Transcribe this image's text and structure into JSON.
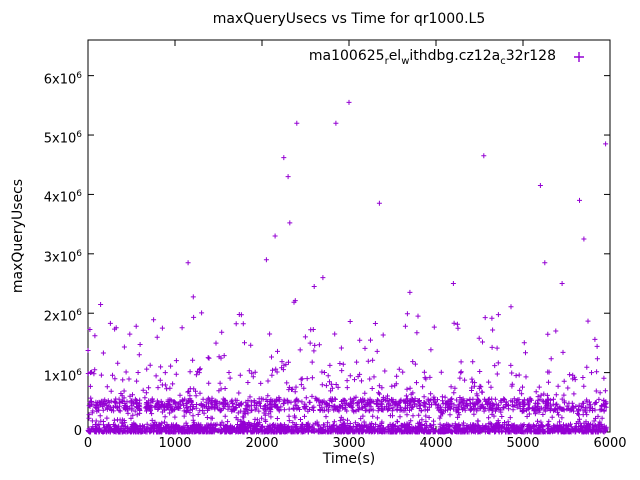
{
  "page": {
    "background": "#ffffff"
  },
  "chart_data": {
    "type": "scatter",
    "title": "maxQueryUsecs vs Time for qr1000.L5",
    "xlabel": "Time(s)",
    "ylabel": "maxQueryUsecs",
    "xlim": [
      0,
      6000
    ],
    "ylim": [
      0,
      6600000
    ],
    "grid": false,
    "border": true,
    "legend_position": "top-right-inside",
    "xticks": [
      {
        "v": 0,
        "label": "0"
      },
      {
        "v": 1000,
        "label": "1000"
      },
      {
        "v": 2000,
        "label": "2000"
      },
      {
        "v": 3000,
        "label": "3000"
      },
      {
        "v": 4000,
        "label": "4000"
      },
      {
        "v": 5000,
        "label": "5000"
      },
      {
        "v": 6000,
        "label": "6000"
      }
    ],
    "yticks": [
      {
        "v": 0,
        "label": "0"
      },
      {
        "v": 1000000,
        "label": "1x10^6"
      },
      {
        "v": 2000000,
        "label": "2x10^6"
      },
      {
        "v": 3000000,
        "label": "3x10^6"
      },
      {
        "v": 4000000,
        "label": "4x10^6"
      },
      {
        "v": 5000000,
        "label": "5x10^6"
      },
      {
        "v": 6000000,
        "label": "6x10^6"
      }
    ],
    "series": [
      {
        "name": "ma100625_rel_withdbg.cz12a_c32r128",
        "marker": "plus",
        "color": "#9400d3",
        "label_parts": [
          {
            "t": "ma100625"
          },
          {
            "t": "r",
            "sub": true
          },
          {
            "t": "el"
          },
          {
            "t": "w",
            "sub": true
          },
          {
            "t": "ithdbg.cz12a"
          },
          {
            "t": "c",
            "sub": true
          },
          {
            "t": "32r128"
          }
        ]
      }
    ],
    "point_cloud": {
      "seed": 1337,
      "x_range": [
        0,
        5960
      ],
      "bands": [
        {
          "name": "baseline-dense",
          "count": 1600,
          "y_base": 0,
          "y_scale": 130000,
          "y_exp": 2.2
        },
        {
          "name": "mid-band",
          "count": 800,
          "y_base": 350000,
          "y_scale": 210000,
          "y_exp": 1.0
        },
        {
          "name": "lower-spread",
          "count": 650,
          "y_base": 60000,
          "y_scale": 950000,
          "y_exp": 1.8
        },
        {
          "name": "upper-sparse",
          "count": 140,
          "y_base": 1000000,
          "y_scale": 1300000,
          "y_exp": 2.0
        }
      ]
    },
    "outliers": [
      [
        1150,
        2850000
      ],
      [
        2050,
        2900000
      ],
      [
        2150,
        3300000
      ],
      [
        2250,
        4620000
      ],
      [
        2300,
        4300000
      ],
      [
        2320,
        3520000
      ],
      [
        2400,
        5200000
      ],
      [
        2600,
        2450000
      ],
      [
        2700,
        2600000
      ],
      [
        2850,
        5200000
      ],
      [
        3000,
        5550000
      ],
      [
        3350,
        3850000
      ],
      [
        3700,
        2350000
      ],
      [
        4200,
        2500000
      ],
      [
        4550,
        4650000
      ],
      [
        5200,
        4150000
      ],
      [
        5250,
        2850000
      ],
      [
        5450,
        2500000
      ],
      [
        5650,
        3900000
      ],
      [
        5700,
        3250000
      ],
      [
        5950,
        4850000
      ]
    ]
  }
}
